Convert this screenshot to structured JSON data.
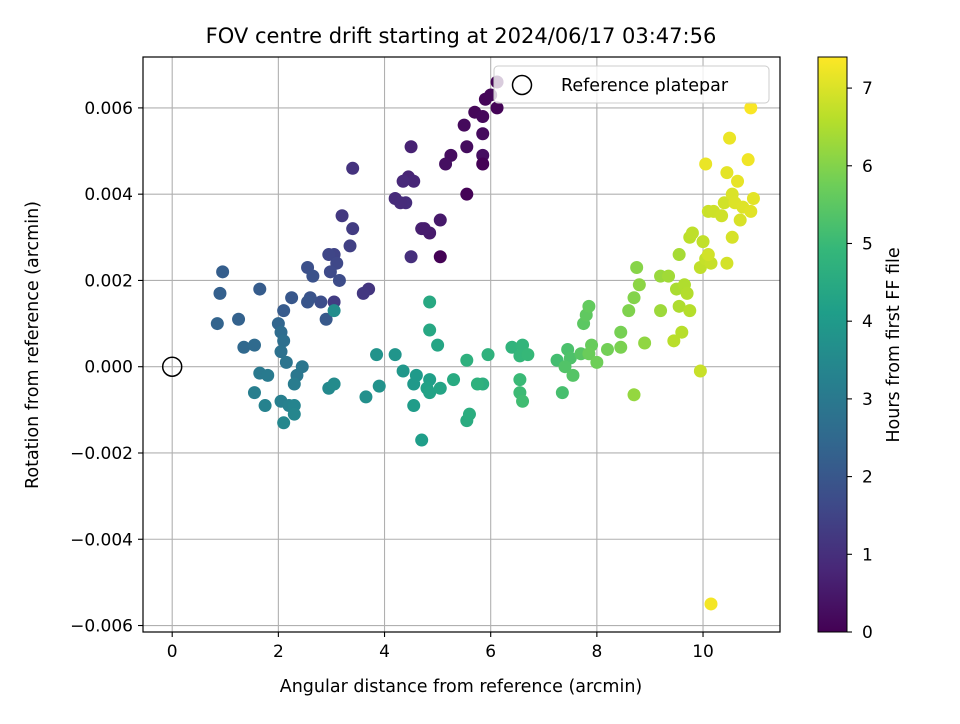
{
  "chart_data": {
    "type": "scatter",
    "title": "FOV centre drift starting at 2024/06/17 03:47:56",
    "xlabel": "Angular distance from reference (arcmin)",
    "ylabel": "Rotation from reference (arcmin)",
    "xlim": [
      -0.55,
      11.45
    ],
    "ylim": [
      -0.00615,
      0.00718
    ],
    "x_ticks": [
      0,
      2,
      4,
      6,
      8,
      10
    ],
    "x_tick_labels": [
      "0",
      "2",
      "4",
      "6",
      "8",
      "10"
    ],
    "y_ticks": [
      -0.006,
      -0.004,
      -0.002,
      0.0,
      0.002,
      0.004,
      0.006
    ],
    "y_tick_labels": [
      "−0.006",
      "−0.004",
      "−0.002",
      "0.000",
      "0.002",
      "0.004",
      "0.006"
    ],
    "grid": true,
    "legend": {
      "placement": "top-right",
      "entries": [
        "Reference platepar"
      ]
    },
    "reference_point": {
      "x": 0,
      "y": 0,
      "marker": "open-circle"
    },
    "colorbar": {
      "label": "Hours from first FF file",
      "colormap": "viridis",
      "range": [
        0,
        7.4
      ],
      "ticks": [
        0,
        1,
        2,
        3,
        4,
        5,
        6,
        7
      ],
      "tick_labels": [
        "0",
        "1",
        "2",
        "3",
        "4",
        "5",
        "6",
        "7"
      ]
    },
    "series": [
      {
        "color_by": "hours",
        "points": [
          [
            6.12,
            0.0066,
            0.05
          ],
          [
            5.9,
            0.0062,
            0.08
          ],
          [
            6.0,
            0.0063,
            0.1
          ],
          [
            5.7,
            0.0059,
            0.12
          ],
          [
            5.85,
            0.0058,
            0.15
          ],
          [
            5.5,
            0.0056,
            0.18
          ],
          [
            5.85,
            0.0054,
            0.2
          ],
          [
            5.55,
            0.0051,
            0.23
          ],
          [
            5.25,
            0.0049,
            0.25
          ],
          [
            5.85,
            0.0049,
            0.28
          ],
          [
            5.15,
            0.0047,
            0.3
          ],
          [
            5.85,
            0.0047,
            0.02
          ],
          [
            6.12,
            0.006,
            0.06
          ],
          [
            5.55,
            0.004,
            0.04
          ],
          [
            5.05,
            0.00255,
            0.03
          ],
          [
            5.05,
            0.0034,
            0.5
          ],
          [
            4.85,
            0.0031,
            0.55
          ],
          [
            4.7,
            0.0032,
            0.65
          ],
          [
            4.75,
            0.0032,
            0.6
          ],
          [
            4.5,
            0.0051,
            0.7
          ],
          [
            4.45,
            0.0044,
            0.75
          ],
          [
            4.55,
            0.0043,
            0.8
          ],
          [
            4.35,
            0.0043,
            0.85
          ],
          [
            4.2,
            0.0039,
            0.9
          ],
          [
            4.4,
            0.0038,
            0.95
          ],
          [
            4.3,
            0.0038,
            0.92
          ],
          [
            4.5,
            0.00255,
            1.0
          ],
          [
            3.4,
            0.0046,
            1.1
          ],
          [
            3.2,
            0.0035,
            1.2
          ],
          [
            3.4,
            0.0032,
            1.3
          ],
          [
            3.7,
            0.0018,
            1.15
          ],
          [
            3.6,
            0.0017,
            1.2
          ],
          [
            3.35,
            0.0028,
            1.4
          ],
          [
            3.05,
            0.0026,
            1.5
          ],
          [
            2.95,
            0.0026,
            1.55
          ],
          [
            3.1,
            0.0024,
            1.6
          ],
          [
            2.98,
            0.0022,
            1.65
          ],
          [
            3.15,
            0.002,
            1.7
          ],
          [
            3.05,
            0.0015,
            1.3
          ],
          [
            2.8,
            0.0015,
            1.75
          ],
          [
            2.55,
            0.0023,
            1.8
          ],
          [
            2.65,
            0.0021,
            1.85
          ],
          [
            2.6,
            0.0016,
            1.9
          ],
          [
            2.55,
            0.0015,
            1.95
          ],
          [
            2.25,
            0.0016,
            2.0
          ],
          [
            2.9,
            0.0011,
            2.05
          ],
          [
            2.1,
            0.0013,
            2.1
          ],
          [
            1.65,
            0.0018,
            2.15
          ],
          [
            0.95,
            0.0022,
            2.2
          ],
          [
            0.9,
            0.0017,
            2.25
          ],
          [
            1.25,
            0.0011,
            2.3
          ],
          [
            0.85,
            0.001,
            2.35
          ],
          [
            2.0,
            0.001,
            2.4
          ],
          [
            1.35,
            0.00045,
            2.5
          ],
          [
            1.55,
            0.0005,
            2.55
          ],
          [
            2.05,
            0.0008,
            2.6
          ],
          [
            2.1,
            0.0006,
            2.7
          ],
          [
            2.05,
            0.00035,
            2.75
          ],
          [
            2.15,
            0.0001,
            2.85
          ],
          [
            2.45,
            0.0,
            2.9
          ],
          [
            2.35,
            -0.0002,
            2.95
          ],
          [
            1.65,
            -0.00015,
            3.0
          ],
          [
            1.8,
            -0.0002,
            3.05
          ],
          [
            2.3,
            -0.0004,
            3.1
          ],
          [
            1.55,
            -0.0006,
            3.15
          ],
          [
            2.05,
            -0.0008,
            3.2
          ],
          [
            2.2,
            -0.0009,
            3.25
          ],
          [
            1.75,
            -0.0009,
            3.3
          ],
          [
            2.3,
            -0.0009,
            3.35
          ],
          [
            2.3,
            -0.0011,
            3.4
          ],
          [
            2.1,
            -0.0013,
            3.45
          ],
          [
            2.95,
            -0.0005,
            3.5
          ],
          [
            3.05,
            -0.0004,
            3.55
          ],
          [
            3.05,
            0.0013,
            3.6
          ],
          [
            3.65,
            -0.0007,
            3.7
          ],
          [
            3.9,
            -0.00045,
            3.75
          ],
          [
            3.85,
            0.00028,
            3.8
          ],
          [
            4.2,
            0.00028,
            3.85
          ],
          [
            4.35,
            -0.0001,
            3.9
          ],
          [
            4.55,
            -0.0004,
            3.95
          ],
          [
            4.6,
            -0.0002,
            4.0
          ],
          [
            4.55,
            -0.0009,
            4.05
          ],
          [
            4.7,
            -0.0017,
            4.1
          ],
          [
            4.85,
            -0.0003,
            4.15
          ],
          [
            4.8,
            -0.0005,
            4.2
          ],
          [
            4.85,
            -0.0006,
            4.25
          ],
          [
            5.05,
            -0.0005,
            4.3
          ],
          [
            5.0,
            0.0005,
            4.35
          ],
          [
            4.85,
            0.00085,
            4.4
          ],
          [
            4.85,
            0.0015,
            4.45
          ],
          [
            5.3,
            -0.0003,
            4.5
          ],
          [
            5.55,
            -0.00125,
            4.55
          ],
          [
            5.6,
            -0.0011,
            4.6
          ],
          [
            5.85,
            -0.0004,
            4.65
          ],
          [
            5.55,
            0.00015,
            4.7
          ],
          [
            5.75,
            -0.0004,
            4.72
          ],
          [
            5.95,
            0.00028,
            4.75
          ],
          [
            6.4,
            0.00045,
            4.8
          ],
          [
            6.6,
            0.0005,
            4.85
          ],
          [
            6.55,
            0.00025,
            4.9
          ],
          [
            6.7,
            0.00028,
            4.95
          ],
          [
            6.55,
            -0.0003,
            5.0
          ],
          [
            6.55,
            -0.0006,
            5.05
          ],
          [
            6.6,
            -0.0008,
            5.1
          ],
          [
            7.25,
            0.00015,
            5.15
          ],
          [
            7.35,
            -0.0006,
            5.2
          ],
          [
            7.45,
            0.0004,
            5.25
          ],
          [
            7.5,
            0.0002,
            5.3
          ],
          [
            7.4,
            0.0,
            5.35
          ],
          [
            7.55,
            -0.0002,
            5.4
          ],
          [
            7.7,
            0.0003,
            5.45
          ],
          [
            7.75,
            0.001,
            5.5
          ],
          [
            7.8,
            0.0012,
            5.55
          ],
          [
            7.85,
            0.0014,
            5.6
          ],
          [
            7.9,
            0.0005,
            5.65
          ],
          [
            7.85,
            0.0003,
            5.7
          ],
          [
            8.0,
            0.0001,
            5.75
          ],
          [
            8.2,
            0.0004,
            5.8
          ],
          [
            8.45,
            0.0008,
            5.85
          ],
          [
            8.45,
            0.00045,
            5.9
          ],
          [
            8.6,
            0.0013,
            5.95
          ],
          [
            8.7,
            0.0016,
            6.0
          ],
          [
            8.75,
            0.0023,
            6.05
          ],
          [
            8.8,
            0.0019,
            6.1
          ],
          [
            8.9,
            0.00055,
            6.15
          ],
          [
            8.7,
            -0.00065,
            6.2
          ],
          [
            9.2,
            0.0021,
            6.25
          ],
          [
            9.2,
            0.0013,
            6.3
          ],
          [
            9.35,
            0.0021,
            6.35
          ],
          [
            9.55,
            0.0026,
            6.4
          ],
          [
            9.5,
            0.0018,
            6.45
          ],
          [
            9.55,
            0.0014,
            6.5
          ],
          [
            9.65,
            0.0019,
            6.52
          ],
          [
            9.7,
            0.0017,
            6.55
          ],
          [
            9.75,
            0.0013,
            6.58
          ],
          [
            9.6,
            0.0008,
            6.6
          ],
          [
            9.45,
            0.0006,
            6.62
          ],
          [
            9.75,
            0.003,
            6.65
          ],
          [
            9.8,
            0.0031,
            6.68
          ],
          [
            9.95,
            0.0023,
            6.7
          ],
          [
            10.0,
            0.0029,
            6.72
          ],
          [
            10.05,
            0.0025,
            6.75
          ],
          [
            10.15,
            0.0024,
            6.78
          ],
          [
            9.95,
            -0.0001,
            6.8
          ],
          [
            10.1,
            0.0036,
            6.82
          ],
          [
            10.2,
            0.0036,
            6.85
          ],
          [
            10.35,
            0.0035,
            6.88
          ],
          [
            10.4,
            0.0038,
            6.9
          ],
          [
            10.45,
            0.0024,
            6.92
          ],
          [
            10.55,
            0.003,
            6.95
          ],
          [
            10.7,
            0.0034,
            6.98
          ],
          [
            10.55,
            0.004,
            7.0
          ],
          [
            10.6,
            0.0038,
            7.02
          ],
          [
            10.75,
            0.0037,
            7.05
          ],
          [
            10.9,
            0.0036,
            7.08
          ],
          [
            10.95,
            0.0039,
            7.1
          ],
          [
            10.45,
            0.0045,
            7.12
          ],
          [
            10.65,
            0.0043,
            7.15
          ],
          [
            10.05,
            0.0047,
            7.18
          ],
          [
            10.5,
            0.0053,
            7.2
          ],
          [
            10.85,
            0.0048,
            7.25
          ],
          [
            10.9,
            0.006,
            7.35
          ],
          [
            10.15,
            -0.0055,
            7.3
          ],
          [
            10.1,
            0.0026,
            6.9
          ]
        ]
      }
    ]
  }
}
